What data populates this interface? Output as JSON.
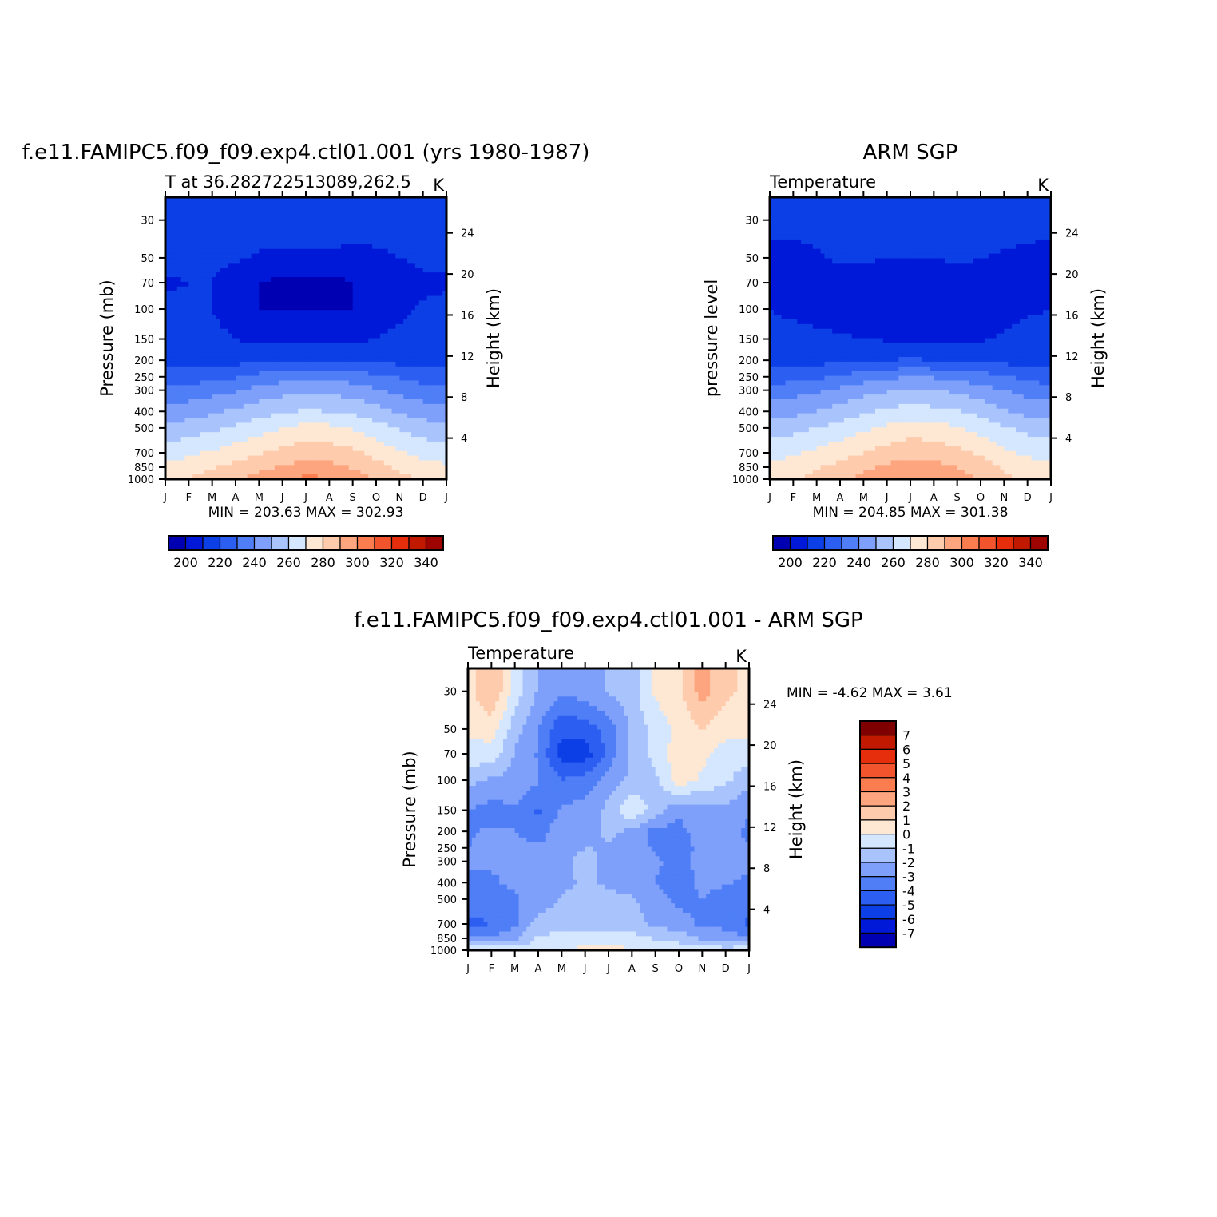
{
  "page": {
    "top_left_title": "f.e11.FAMIPC5.f09_f09.exp4.ctl01.001 (yrs 1980-1987)",
    "top_right_title": "ARM SGP",
    "bottom_title": "f.e11.FAMIPC5.f09_f09.exp4.ctl01.001 - ARM SGP"
  },
  "chart_data": [
    {
      "id": "model",
      "type": "heatmap",
      "subtitle": "T at 36.282722513089,262.5",
      "units": "K",
      "xlabel": "",
      "ylabel": "Pressure (mb)",
      "ylabel_right": "Height (km)",
      "x_tick_labels": [
        "J",
        "F",
        "M",
        "A",
        "M",
        "J",
        "J",
        "A",
        "S",
        "O",
        "N",
        "D",
        "J"
      ],
      "y_ticks": [
        30,
        50,
        70,
        100,
        150,
        200,
        250,
        300,
        400,
        500,
        700,
        850,
        1000
      ],
      "y_range": [
        1000,
        22
      ],
      "y_scale": "log",
      "right_ticks": [
        24,
        20,
        16,
        12,
        8,
        4
      ],
      "stats": "MIN = 203.63 MAX = 302.93",
      "min": 203.63,
      "max": 302.93,
      "colorbar_labels": [
        "200",
        "220",
        "240",
        "260",
        "280",
        "300",
        "320",
        "340"
      ],
      "contour_levels": [
        195,
        200,
        205,
        210,
        220,
        230,
        240,
        250,
        260,
        270,
        280,
        290,
        300,
        310,
        320,
        330,
        340,
        345
      ],
      "months": [
        1,
        2,
        3,
        4,
        5,
        6,
        7,
        8,
        9,
        10,
        11,
        12,
        13
      ],
      "levels_mb": [
        1000,
        850,
        700,
        500,
        400,
        300,
        250,
        200,
        150,
        100,
        70,
        50,
        30
      ],
      "values": [
        [
          277,
          280,
          284,
          289,
          294,
          299,
          302,
          301,
          296,
          289,
          283,
          279,
          277
        ],
        [
          272,
          275,
          279,
          283,
          287,
          291,
          294,
          293,
          289,
          284,
          278,
          274,
          272
        ],
        [
          265,
          268,
          271,
          275,
          279,
          283,
          286,
          285,
          282,
          277,
          271,
          267,
          265
        ],
        [
          253,
          255,
          258,
          262,
          266,
          270,
          273,
          272,
          269,
          264,
          259,
          255,
          253
        ],
        [
          243,
          245,
          248,
          252,
          256,
          259,
          261,
          260,
          258,
          254,
          249,
          245,
          243
        ],
        [
          232,
          234,
          236,
          239,
          243,
          246,
          248,
          247,
          245,
          241,
          237,
          234,
          232
        ],
        [
          224,
          225,
          227,
          229,
          233,
          236,
          238,
          237,
          235,
          232,
          229,
          226,
          224
        ],
        [
          216,
          216,
          217,
          217,
          218,
          219,
          219,
          219,
          219,
          218,
          217,
          216,
          216
        ],
        [
          213,
          213,
          212,
          210,
          207,
          207,
          207,
          207,
          208,
          210,
          212,
          213,
          213
        ],
        [
          212,
          211,
          210,
          206,
          205,
          205,
          205,
          205,
          205,
          206,
          208,
          211,
          212
        ],
        [
          209,
          210,
          210,
          206,
          205,
          204,
          204,
          204,
          205,
          206,
          205,
          208,
          209
        ],
        [
          212,
          212,
          212,
          211,
          209,
          208,
          208,
          208,
          207,
          208,
          210,
          212,
          212
        ],
        [
          214,
          214,
          214,
          214,
          214,
          215,
          216,
          216,
          216,
          215,
          214,
          214,
          214
        ]
      ]
    },
    {
      "id": "obs",
      "type": "heatmap",
      "subtitle": "Temperature",
      "units": "K",
      "xlabel": "",
      "ylabel": "pressure level",
      "ylabel_right": "Height (km)",
      "x_tick_labels": [
        "J",
        "F",
        "M",
        "A",
        "M",
        "J",
        "J",
        "A",
        "S",
        "O",
        "N",
        "D",
        "J"
      ],
      "y_ticks": [
        30,
        50,
        70,
        100,
        150,
        200,
        250,
        300,
        400,
        500,
        700,
        850,
        1000
      ],
      "y_range": [
        1000,
        22
      ],
      "y_scale": "log",
      "right_ticks": [
        24,
        20,
        16,
        12,
        8,
        4
      ],
      "stats": "MIN = 204.85 MAX = 301.38",
      "min": 204.85,
      "max": 301.38,
      "colorbar_labels": [
        "200",
        "220",
        "240",
        "260",
        "280",
        "300",
        "320",
        "340"
      ],
      "contour_levels": [
        195,
        200,
        205,
        210,
        220,
        230,
        240,
        250,
        260,
        270,
        280,
        290,
        300,
        310,
        320,
        330,
        340,
        345
      ],
      "months": [
        1,
        2,
        3,
        4,
        5,
        6,
        7,
        8,
        9,
        10,
        11,
        12,
        13
      ],
      "levels_mb": [
        1000,
        850,
        700,
        500,
        400,
        300,
        250,
        200,
        150,
        100,
        70,
        50,
        30
      ],
      "values": [
        [
          276,
          279,
          283,
          288,
          293,
          298,
          301,
          300,
          295,
          288,
          282,
          278,
          276
        ],
        [
          272,
          275,
          279,
          283,
          288,
          292,
          295,
          294,
          290,
          285,
          279,
          275,
          272
        ],
        [
          266,
          269,
          272,
          276,
          280,
          284,
          287,
          286,
          283,
          278,
          272,
          268,
          266
        ],
        [
          255,
          257,
          260,
          264,
          268,
          272,
          275,
          274,
          271,
          266,
          261,
          257,
          255
        ],
        [
          245,
          247,
          250,
          254,
          258,
          262,
          264,
          263,
          261,
          257,
          251,
          247,
          245
        ],
        [
          234,
          236,
          238,
          242,
          246,
          249,
          251,
          250,
          248,
          244,
          240,
          236,
          234
        ],
        [
          225,
          226,
          228,
          231,
          235,
          238,
          240,
          239,
          237,
          234,
          231,
          227,
          225
        ],
        [
          216,
          216,
          217,
          218,
          219,
          220,
          221,
          220,
          220,
          219,
          217,
          216,
          216
        ],
        [
          213,
          213,
          212,
          211,
          210,
          209,
          208,
          208,
          208,
          209,
          211,
          213,
          213
        ],
        [
          210,
          208,
          207,
          206,
          206,
          206,
          206,
          206,
          206,
          207,
          207,
          209,
          210
        ],
        [
          207,
          207,
          206,
          207,
          207,
          206,
          206,
          206,
          207,
          207,
          208,
          207,
          207
        ],
        [
          208,
          207,
          209,
          211,
          211,
          210,
          210,
          210,
          211,
          210,
          209,
          208,
          208
        ],
        [
          212,
          213,
          213,
          214,
          214,
          215,
          216,
          216,
          216,
          215,
          214,
          213,
          212
        ]
      ]
    },
    {
      "id": "diff",
      "type": "heatmap",
      "subtitle": "Temperature",
      "units": "K",
      "xlabel": "",
      "ylabel": "Pressure (mb)",
      "ylabel_right": "Height (km)",
      "x_tick_labels": [
        "J",
        "F",
        "M",
        "A",
        "M",
        "J",
        "J",
        "A",
        "S",
        "O",
        "N",
        "D",
        "J"
      ],
      "y_ticks": [
        30,
        50,
        70,
        100,
        150,
        200,
        250,
        300,
        400,
        500,
        700,
        850,
        1000
      ],
      "y_range": [
        1000,
        22
      ],
      "y_scale": "log",
      "right_ticks": [
        24,
        20,
        16,
        12,
        8,
        4
      ],
      "stats": "MIN = -4.62 MAX = 3.61",
      "min": -4.62,
      "max": 3.61,
      "colorbar_labels": [
        "7",
        "6",
        "5",
        "4",
        "3",
        "2",
        "1",
        "0",
        "-1",
        "-2",
        "-3",
        "-4",
        "-5",
        "-6",
        "-7"
      ],
      "contour_levels": [
        -8,
        -7,
        -6,
        -5,
        -4,
        -3,
        -2,
        -1,
        0,
        1,
        2,
        3,
        4,
        5,
        6,
        7,
        8
      ],
      "months": [
        1,
        2,
        3,
        4,
        5,
        6,
        7,
        8,
        9,
        10,
        11,
        12,
        13
      ],
      "levels_mb": [
        1000,
        850,
        700,
        500,
        400,
        300,
        250,
        200,
        150,
        100,
        70,
        50,
        30
      ],
      "values": [
        [
          0.5,
          0.6,
          0.3,
          0.5,
          0.9,
          1.3,
          1.4,
          1.0,
          0.8,
          0.6,
          0.4,
          0.3,
          0.5
        ],
        [
          -1.8,
          -1.9,
          -1.2,
          0.1,
          0.4,
          0.3,
          0.6,
          0.4,
          -0.1,
          -0.4,
          -1.1,
          -1.4,
          -1.8
        ],
        [
          -3.2,
          -3.0,
          -2.3,
          -0.6,
          -0.4,
          -0.5,
          -0.5,
          -0.6,
          -1.2,
          -1.6,
          -2.2,
          -2.4,
          -3.2
        ],
        [
          -2.6,
          -2.8,
          -2.1,
          -1.6,
          -0.9,
          -0.8,
          -0.8,
          -0.9,
          -1.6,
          -2.3,
          -2.0,
          -2.5,
          -2.6
        ],
        [
          -2.2,
          -2.1,
          -1.8,
          -1.7,
          -1.2,
          -0.9,
          -1.1,
          -1.4,
          -2.0,
          -2.6,
          -1.7,
          -1.9,
          -2.2
        ],
        [
          -1.8,
          -1.9,
          -2.0,
          -1.9,
          -1.3,
          -0.6,
          -1.3,
          -1.7,
          -1.8,
          -2.4,
          -1.6,
          -1.6,
          -1.8
        ],
        [
          -2.0,
          -1.8,
          -1.6,
          -1.9,
          -1.5,
          -1.0,
          -1.1,
          -1.3,
          -2.2,
          -2.3,
          -1.8,
          -1.7,
          -2.0
        ],
        [
          -2.1,
          -1.9,
          -2.0,
          -2.5,
          -1.4,
          -1.3,
          -0.8,
          -1.2,
          -2.4,
          -2.2,
          -1.7,
          -1.8,
          -2.1
        ],
        [
          -2.0,
          -2.4,
          -2.1,
          -3.2,
          -1.8,
          -1.6,
          -0.7,
          0.9,
          -0.5,
          -1.9,
          -1.4,
          -1.3,
          -2.0
        ],
        [
          -0.7,
          -1.2,
          -1.3,
          -1.9,
          -3.0,
          -2.6,
          -1.5,
          -0.8,
          -0.2,
          1.7,
          0.8,
          0.2,
          -0.7
        ],
        [
          0.6,
          0.7,
          -1.1,
          -2.1,
          -4.4,
          -4.6,
          -2.6,
          -0.7,
          0.3,
          1.6,
          1.3,
          0.5,
          0.6
        ],
        [
          1.2,
          1.4,
          -0.5,
          -1.9,
          -3.8,
          -3.5,
          -2.6,
          -0.8,
          0.4,
          1.3,
          2.0,
          1.4,
          1.2
        ],
        [
          1.6,
          3.1,
          0.5,
          -1.1,
          -1.8,
          -1.5,
          -0.9,
          -0.4,
          1.2,
          1.8,
          3.5,
          2.3,
          1.6
        ]
      ]
    }
  ]
}
